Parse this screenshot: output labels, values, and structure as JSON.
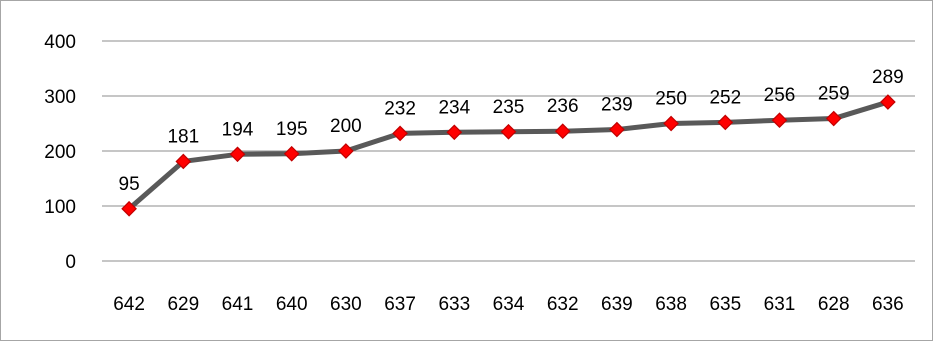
{
  "chart_data": {
    "type": "line",
    "categories": [
      "642",
      "629",
      "641",
      "640",
      "630",
      "637",
      "633",
      "634",
      "632",
      "639",
      "638",
      "635",
      "631",
      "628",
      "636"
    ],
    "series": [
      {
        "values": [
          95,
          181,
          194,
          195,
          200,
          232,
          234,
          235,
          236,
          239,
          250,
          252,
          256,
          259,
          289
        ]
      }
    ],
    "ylim": [
      0,
      400
    ],
    "yticks": [
      0,
      100,
      200,
      300,
      400
    ],
    "grid": true,
    "legend": "none",
    "data_labels": true,
    "colors": {
      "line": "#595959",
      "marker_fill": "#ff0000",
      "marker_stroke": "#c00000",
      "grid": "#8c8c8c"
    }
  }
}
